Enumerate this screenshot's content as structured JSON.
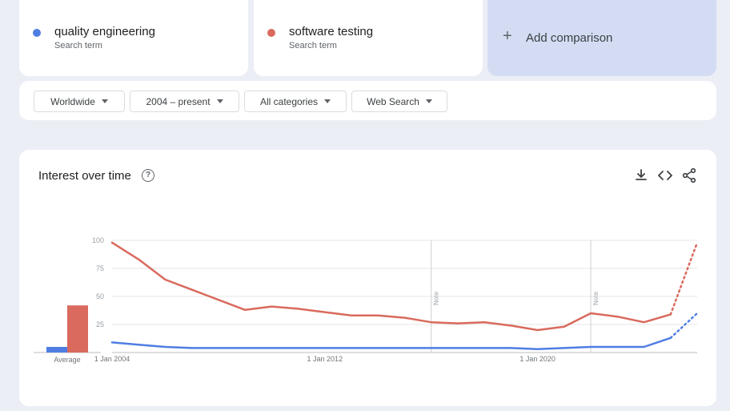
{
  "terms": [
    {
      "name": "quality engineering",
      "sub": "Search term",
      "color": "#4f7ee3"
    },
    {
      "name": "software testing",
      "sub": "Search term",
      "color": "#d96a5d"
    }
  ],
  "add_comparison": "Add comparison",
  "filters": {
    "region": "Worldwide",
    "time": "2004 – present",
    "category": "All categories",
    "search_type": "Web Search"
  },
  "chart_panel": {
    "title": "Interest over time",
    "icons": [
      "help-icon",
      "download-icon",
      "embed-icon",
      "share-icon"
    ]
  },
  "chart_data": [
    {
      "type": "bar",
      "categories": [
        "Average"
      ],
      "series": [
        {
          "name": "quality engineering",
          "values": [
            5
          ],
          "color": "#4f7ee3"
        },
        {
          "name": "software testing",
          "values": [
            42
          ],
          "color": "#d96a5d"
        }
      ],
      "ylim": [
        0,
        100
      ]
    },
    {
      "type": "line",
      "x": [
        2004,
        2005,
        2006,
        2007,
        2008,
        2009,
        2010,
        2011,
        2012,
        2013,
        2014,
        2015,
        2016,
        2017,
        2018,
        2019,
        2020,
        2021,
        2022,
        2023,
        2024,
        2025,
        2026
      ],
      "x_ticks": [
        {
          "label": "1 Jan 2004",
          "x": 2004
        },
        {
          "label": "1 Jan 2012",
          "x": 2012
        },
        {
          "label": "1 Jan 2020",
          "x": 2020
        }
      ],
      "y_ticks": [
        "25",
        "50",
        "75",
        "100"
      ],
      "ylim": [
        0,
        100
      ],
      "xlim": [
        2004,
        2026
      ],
      "grid": true,
      "notes": [
        {
          "label": "Note",
          "x": 2016
        },
        {
          "label": "Note",
          "x": 2022
        }
      ],
      "partial_from_x": 2025,
      "series": [
        {
          "name": "quality engineering",
          "color": "#4f7ee3",
          "values": [
            9,
            7,
            5,
            4,
            4,
            4,
            4,
            4,
            4,
            4,
            4,
            4,
            4,
            4,
            4,
            4,
            3,
            4,
            5,
            5,
            5,
            13,
            35
          ]
        },
        {
          "name": "software testing",
          "color": "#d96a5d",
          "values": [
            98,
            83,
            65,
            56,
            47,
            38,
            41,
            39,
            36,
            33,
            33,
            31,
            27,
            26,
            27,
            24,
            20,
            23,
            35,
            32,
            27,
            34,
            98
          ]
        }
      ]
    }
  ]
}
